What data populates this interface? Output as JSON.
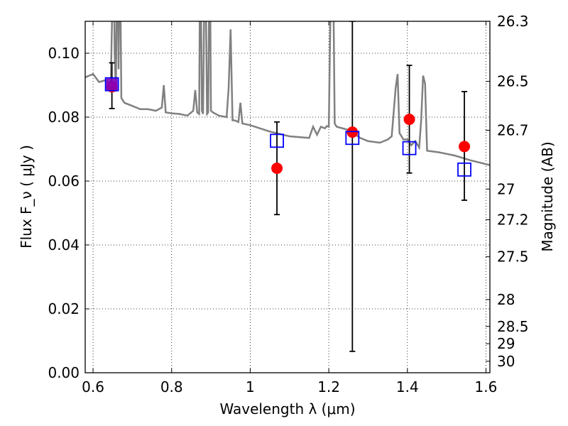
{
  "chart_data": {
    "type": "scatter",
    "xlabel": "Wavelength  λ (μm)",
    "ylabel": "Flux  F_ν  ( μJy )",
    "y2label": "Magnitude (AB)",
    "xlim": [
      0.58,
      1.61
    ],
    "ylim": [
      0.0,
      0.11
    ],
    "grid": true,
    "x_ticks": [
      0.6,
      0.8,
      1.0,
      1.2,
      1.4,
      1.6
    ],
    "x_tick_labels": [
      "0.6",
      "0.8",
      "1",
      "1.2",
      "1.4",
      "1.6"
    ],
    "y_ticks": [
      0.0,
      0.02,
      0.04,
      0.06,
      0.08,
      0.1
    ],
    "y_tick_labels": [
      "0.00",
      "0.02",
      "0.04",
      "0.06",
      "0.08",
      "0.10"
    ],
    "y2_ticks": [
      {
        "label": "26.3",
        "flux": 0.11
      },
      {
        "label": "26.5",
        "flux": 0.0912
      },
      {
        "label": "26.7",
        "flux": 0.0759
      },
      {
        "label": "27",
        "flux": 0.0575
      },
      {
        "label": "27.2",
        "flux": 0.0479
      },
      {
        "label": "27.5",
        "flux": 0.0363
      },
      {
        "label": "28",
        "flux": 0.0229
      },
      {
        "label": "28.5",
        "flux": 0.0145
      },
      {
        "label": "29",
        "flux": 0.0091
      },
      {
        "label": "30",
        "flux": 0.0036
      }
    ],
    "series": [
      {
        "kind": "line",
        "color": "#808080",
        "x": [
          0.58,
          0.6,
          0.615,
          0.63,
          0.645,
          0.648,
          0.652,
          0.655,
          0.658,
          0.662,
          0.665,
          0.668,
          0.672,
          0.68,
          0.7,
          0.72,
          0.74,
          0.76,
          0.775,
          0.78,
          0.785,
          0.8,
          0.82,
          0.84,
          0.855,
          0.86,
          0.865,
          0.87,
          0.873,
          0.877,
          0.88,
          0.885,
          0.89,
          0.893,
          0.897,
          0.9,
          0.905,
          0.92,
          0.94,
          0.945,
          0.95,
          0.955,
          0.96,
          0.97,
          0.975,
          0.98,
          1.0,
          1.05,
          1.1,
          1.15,
          1.16,
          1.17,
          1.18,
          1.19,
          1.195,
          1.2,
          1.205,
          1.21,
          1.215,
          1.22,
          1.25,
          1.28,
          1.3,
          1.33,
          1.35,
          1.36,
          1.37,
          1.375,
          1.38,
          1.39,
          1.4,
          1.41,
          1.42,
          1.43,
          1.435,
          1.44,
          1.445,
          1.45,
          1.48,
          1.52,
          1.56,
          1.61
        ],
        "y": [
          0.0925,
          0.0935,
          0.091,
          0.0915,
          0.09,
          0.108,
          0.14,
          0.1,
          0.088,
          0.14,
          0.095,
          0.14,
          0.086,
          0.0845,
          0.0835,
          0.0825,
          0.0825,
          0.082,
          0.083,
          0.09,
          0.0815,
          0.0812,
          0.081,
          0.0805,
          0.082,
          0.0885,
          0.0815,
          0.081,
          0.14,
          0.082,
          0.081,
          0.14,
          0.081,
          0.0815,
          0.14,
          0.082,
          0.0815,
          0.0805,
          0.08,
          0.089,
          0.1075,
          0.079,
          0.079,
          0.0785,
          0.0845,
          0.078,
          0.0775,
          0.0755,
          0.074,
          0.0735,
          0.077,
          0.0745,
          0.077,
          0.0765,
          0.0772,
          0.077,
          0.12,
          0.14,
          0.078,
          0.077,
          0.076,
          0.0735,
          0.0725,
          0.072,
          0.073,
          0.074,
          0.089,
          0.0935,
          0.075,
          0.073,
          0.073,
          0.0712,
          0.0725,
          0.0705,
          0.079,
          0.093,
          0.0905,
          0.0695,
          0.069,
          0.068,
          0.0665,
          0.065
        ]
      },
      {
        "kind": "scatter-circle",
        "color": "#ff0000",
        "x": [
          0.648,
          1.068,
          1.26,
          1.405,
          1.545
        ],
        "y": [
          0.0895,
          0.064,
          0.0753,
          0.0793,
          0.0708
        ]
      },
      {
        "kind": "errorbar",
        "color": "#000000",
        "x": [
          0.648,
          1.068,
          1.26,
          1.405,
          1.545
        ],
        "y_low": [
          0.0827,
          0.0495,
          0.0067,
          0.0625,
          0.054
        ],
        "y_high": [
          0.097,
          0.0785,
          0.11,
          0.0962,
          0.088
        ]
      },
      {
        "kind": "scatter-square-open",
        "color": "#0000ff",
        "x": [
          0.648,
          1.068,
          1.26,
          1.405,
          1.545
        ],
        "y": [
          0.0903,
          0.0726,
          0.0735,
          0.0703,
          0.0636
        ]
      }
    ]
  }
}
